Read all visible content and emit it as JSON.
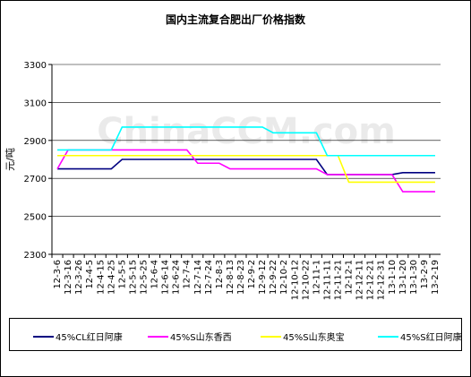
{
  "chart_data": {
    "type": "line",
    "title": "国内主流复合肥出厂价格指数",
    "y_label": "元/吨",
    "watermark": "ChinaCCM.com",
    "categories": [
      "12-3-6",
      "12-3-16",
      "12-3-26",
      "12-4-5",
      "12-4-15",
      "12-4-25",
      "12-5-5",
      "12-5-15",
      "12-5-25",
      "12-6-4",
      "12-6-14",
      "12-6-24",
      "12-7-4",
      "12-7-14",
      "12-7-24",
      "12-8-3",
      "12-8-13",
      "12-8-23",
      "12-9-2",
      "12-9-12",
      "12-9-22",
      "12-10-2",
      "12-10-12",
      "12-10-22",
      "12-11-1",
      "12-11-11",
      "12-11-21",
      "12-12-1",
      "12-12-11",
      "12-12-21",
      "12-12-31",
      "13-1-10",
      "13-1-20",
      "13-1-30",
      "13-2-9",
      "13-2-19"
    ],
    "series": [
      {
        "name": "45%CL红日阿康",
        "color": "#000080",
        "values": [
          2750,
          2750,
          2750,
          2750,
          2750,
          2750,
          2800,
          2800,
          2800,
          2800,
          2800,
          2800,
          2800,
          2800,
          2800,
          2800,
          2800,
          2800,
          2800,
          2800,
          2800,
          2800,
          2800,
          2800,
          2800,
          2720,
          2720,
          2720,
          2720,
          2720,
          2720,
          2720,
          2730,
          2730,
          2730,
          2730
        ]
      },
      {
        "name": "45%S山东香西",
        "color": "#ff00ff",
        "values": [
          2750,
          2850,
          2850,
          2850,
          2850,
          2850,
          2850,
          2850,
          2850,
          2850,
          2850,
          2850,
          2850,
          2780,
          2780,
          2780,
          2750,
          2750,
          2750,
          2750,
          2750,
          2750,
          2750,
          2750,
          2750,
          2720,
          2720,
          2720,
          2720,
          2720,
          2720,
          2720,
          2630,
          2630,
          2630,
          2630
        ]
      },
      {
        "name": "45%S山东奥宝",
        "color": "#ffff00",
        "values": [
          2820,
          2820,
          2820,
          2820,
          2820,
          2820,
          2820,
          2820,
          2820,
          2820,
          2820,
          2820,
          2820,
          2820,
          2820,
          2820,
          2820,
          2820,
          2820,
          2820,
          2820,
          2820,
          2820,
          2820,
          2820,
          2820,
          2820,
          2680,
          2680,
          2680,
          2680,
          2680,
          2680,
          2680,
          2680,
          2680
        ]
      },
      {
        "name": "45%S红日阿康",
        "color": "#00ffff",
        "values": [
          2850,
          2850,
          2850,
          2850,
          2850,
          2850,
          2970,
          2970,
          2970,
          2970,
          2970,
          2970,
          2970,
          2970,
          2970,
          2970,
          2970,
          2970,
          2970,
          2970,
          2940,
          2940,
          2940,
          2940,
          2940,
          2820,
          2820,
          2820,
          2820,
          2820,
          2820,
          2820,
          2820,
          2820,
          2820,
          2820
        ]
      }
    ],
    "ylim": [
      2300,
      3300
    ],
    "yticks": [
      2300,
      2500,
      2700,
      2900,
      3100,
      3300
    ],
    "grid": true
  }
}
